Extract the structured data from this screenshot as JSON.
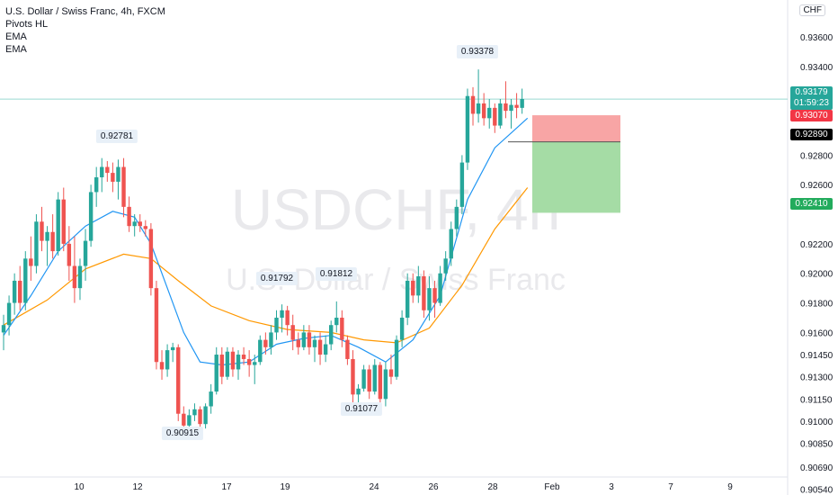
{
  "legend": {
    "title": "U.S. Dollar / Swiss Franc, 4h, FXCM",
    "indicators": [
      "Pivots HL",
      "EMA",
      "EMA"
    ]
  },
  "currency_badge": "CHF",
  "watermark": {
    "symbol": "USDCHF, 4h",
    "name": "U.S. Dollar / Swiss Franc"
  },
  "price_labels": {
    "last": {
      "price": "0.93179",
      "countdown": "01:59:23",
      "color": "#26a69a"
    },
    "stop": {
      "price": "0.93070",
      "color": "#f23645"
    },
    "entry": {
      "price": "0.92890",
      "color": "#000000"
    },
    "target": {
      "price": "0.92410",
      "color": "#22ab5c"
    }
  },
  "pivot_labels": [
    "0.92781",
    "0.91792",
    "0.91812",
    "0.93378",
    "0.90915",
    "0.91077"
  ],
  "colors": {
    "up": "#26a69a",
    "down": "#ef5350",
    "ema_fast": "#2196f3",
    "ema_slow": "#ff9800",
    "stop_zone": "#f8a5a5",
    "target_zone": "#a5dca5"
  },
  "chart_data": {
    "type": "candlestick",
    "title": "U.S. Dollar / Swiss Franc, 4h, FXCM",
    "y_tick_labels": [
      "0.93600",
      "0.93400",
      "0.92800",
      "0.92600",
      "0.92200",
      "0.92000",
      "0.91800",
      "0.91600",
      "0.91450",
      "0.91300",
      "0.91150",
      "0.91000",
      "0.90850",
      "0.90690",
      "0.90540"
    ],
    "x_tick_labels": [
      "10",
      "12",
      "17",
      "19",
      "24",
      "26",
      "28",
      "Feb",
      "3",
      "7",
      "9"
    ],
    "ylim": [
      0.905,
      0.9385
    ],
    "candles": [
      {
        "o": 0.916,
        "h": 0.9172,
        "l": 0.9148,
        "c": 0.9165
      },
      {
        "o": 0.9165,
        "h": 0.9185,
        "l": 0.9158,
        "c": 0.918
      },
      {
        "o": 0.918,
        "h": 0.92,
        "l": 0.9172,
        "c": 0.9195
      },
      {
        "o": 0.9195,
        "h": 0.9205,
        "l": 0.9175,
        "c": 0.918
      },
      {
        "o": 0.918,
        "h": 0.9215,
        "l": 0.9175,
        "c": 0.921
      },
      {
        "o": 0.921,
        "h": 0.9225,
        "l": 0.9195,
        "c": 0.9205
      },
      {
        "o": 0.9205,
        "h": 0.924,
        "l": 0.92,
        "c": 0.9235
      },
      {
        "o": 0.9235,
        "h": 0.9245,
        "l": 0.9215,
        "c": 0.9222
      },
      {
        "o": 0.9222,
        "h": 0.9232,
        "l": 0.9205,
        "c": 0.9228
      },
      {
        "o": 0.9228,
        "h": 0.924,
        "l": 0.921,
        "c": 0.9215
      },
      {
        "o": 0.9215,
        "h": 0.9255,
        "l": 0.9212,
        "c": 0.925
      },
      {
        "o": 0.925,
        "h": 0.9258,
        "l": 0.9215,
        "c": 0.922
      },
      {
        "o": 0.922,
        "h": 0.9232,
        "l": 0.9195,
        "c": 0.9205
      },
      {
        "o": 0.9205,
        "h": 0.9225,
        "l": 0.918,
        "c": 0.919
      },
      {
        "o": 0.919,
        "h": 0.921,
        "l": 0.9182,
        "c": 0.9205
      },
      {
        "o": 0.9205,
        "h": 0.923,
        "l": 0.9195,
        "c": 0.9222
      },
      {
        "o": 0.9222,
        "h": 0.926,
        "l": 0.9218,
        "c": 0.9255
      },
      {
        "o": 0.9255,
        "h": 0.9272,
        "l": 0.9245,
        "c": 0.9265
      },
      {
        "o": 0.9265,
        "h": 0.9278,
        "l": 0.9255,
        "c": 0.9272
      },
      {
        "o": 0.9272,
        "h": 0.9276,
        "l": 0.9262,
        "c": 0.9268
      },
      {
        "o": 0.9268,
        "h": 0.9275,
        "l": 0.9255,
        "c": 0.9262
      },
      {
        "o": 0.9262,
        "h": 0.9277,
        "l": 0.925,
        "c": 0.9272
      },
      {
        "o": 0.9272,
        "h": 0.9278,
        "l": 0.9238,
        "c": 0.9245
      },
      {
        "o": 0.9245,
        "h": 0.9252,
        "l": 0.9228,
        "c": 0.9232
      },
      {
        "o": 0.9232,
        "h": 0.924,
        "l": 0.9225,
        "c": 0.9235
      },
      {
        "o": 0.9235,
        "h": 0.924,
        "l": 0.9228,
        "c": 0.9232
      },
      {
        "o": 0.9232,
        "h": 0.9236,
        "l": 0.9225,
        "c": 0.923
      },
      {
        "o": 0.923,
        "h": 0.9234,
        "l": 0.9185,
        "c": 0.919
      },
      {
        "o": 0.919,
        "h": 0.9195,
        "l": 0.9135,
        "c": 0.914
      },
      {
        "o": 0.914,
        "h": 0.9148,
        "l": 0.9128,
        "c": 0.9135
      },
      {
        "o": 0.9135,
        "h": 0.9152,
        "l": 0.913,
        "c": 0.9148
      },
      {
        "o": 0.9148,
        "h": 0.9153,
        "l": 0.914,
        "c": 0.915
      },
      {
        "o": 0.915,
        "h": 0.9152,
        "l": 0.91,
        "c": 0.9105
      },
      {
        "o": 0.9105,
        "h": 0.911,
        "l": 0.9092,
        "c": 0.9097
      },
      {
        "o": 0.9097,
        "h": 0.9108,
        "l": 0.9095,
        "c": 0.9104
      },
      {
        "o": 0.9104,
        "h": 0.9112,
        "l": 0.91,
        "c": 0.9108
      },
      {
        "o": 0.9108,
        "h": 0.911,
        "l": 0.9093,
        "c": 0.9098
      },
      {
        "o": 0.9098,
        "h": 0.9112,
        "l": 0.9095,
        "c": 0.911
      },
      {
        "o": 0.911,
        "h": 0.9125,
        "l": 0.9105,
        "c": 0.912
      },
      {
        "o": 0.912,
        "h": 0.915,
        "l": 0.9118,
        "c": 0.9145
      },
      {
        "o": 0.9145,
        "h": 0.915,
        "l": 0.9125,
        "c": 0.913
      },
      {
        "o": 0.913,
        "h": 0.915,
        "l": 0.9128,
        "c": 0.9147
      },
      {
        "o": 0.9147,
        "h": 0.915,
        "l": 0.913,
        "c": 0.9135
      },
      {
        "o": 0.9135,
        "h": 0.9148,
        "l": 0.9128,
        "c": 0.9145
      },
      {
        "o": 0.9145,
        "h": 0.915,
        "l": 0.9138,
        "c": 0.9142
      },
      {
        "o": 0.9142,
        "h": 0.9148,
        "l": 0.913,
        "c": 0.9138
      },
      {
        "o": 0.9138,
        "h": 0.9145,
        "l": 0.9125,
        "c": 0.914
      },
      {
        "o": 0.914,
        "h": 0.9158,
        "l": 0.9138,
        "c": 0.9155
      },
      {
        "o": 0.9155,
        "h": 0.916,
        "l": 0.9145,
        "c": 0.915
      },
      {
        "o": 0.915,
        "h": 0.9165,
        "l": 0.9145,
        "c": 0.916
      },
      {
        "o": 0.916,
        "h": 0.9175,
        "l": 0.9155,
        "c": 0.917
      },
      {
        "o": 0.917,
        "h": 0.9179,
        "l": 0.916,
        "c": 0.9175
      },
      {
        "o": 0.9175,
        "h": 0.9178,
        "l": 0.9158,
        "c": 0.9165
      },
      {
        "o": 0.9165,
        "h": 0.9172,
        "l": 0.9148,
        "c": 0.9155
      },
      {
        "o": 0.9155,
        "h": 0.916,
        "l": 0.9145,
        "c": 0.915
      },
      {
        "o": 0.915,
        "h": 0.9165,
        "l": 0.9148,
        "c": 0.916
      },
      {
        "o": 0.916,
        "h": 0.9165,
        "l": 0.9145,
        "c": 0.915
      },
      {
        "o": 0.915,
        "h": 0.9158,
        "l": 0.914,
        "c": 0.9155
      },
      {
        "o": 0.9155,
        "h": 0.916,
        "l": 0.9138,
        "c": 0.9145
      },
      {
        "o": 0.9145,
        "h": 0.9158,
        "l": 0.914,
        "c": 0.9152
      },
      {
        "o": 0.9152,
        "h": 0.9168,
        "l": 0.9148,
        "c": 0.9165
      },
      {
        "o": 0.9165,
        "h": 0.9181,
        "l": 0.916,
        "c": 0.917
      },
      {
        "o": 0.917,
        "h": 0.9175,
        "l": 0.915,
        "c": 0.9155
      },
      {
        "o": 0.9155,
        "h": 0.9158,
        "l": 0.9138,
        "c": 0.9142
      },
      {
        "o": 0.9142,
        "h": 0.9148,
        "l": 0.9112,
        "c": 0.9118
      },
      {
        "o": 0.9118,
        "h": 0.9125,
        "l": 0.9108,
        "c": 0.9122
      },
      {
        "o": 0.9122,
        "h": 0.9138,
        "l": 0.912,
        "c": 0.9135
      },
      {
        "o": 0.9135,
        "h": 0.9138,
        "l": 0.9115,
        "c": 0.912
      },
      {
        "o": 0.912,
        "h": 0.9142,
        "l": 0.9118,
        "c": 0.9138
      },
      {
        "o": 0.9138,
        "h": 0.914,
        "l": 0.911,
        "c": 0.9115
      },
      {
        "o": 0.9115,
        "h": 0.914,
        "l": 0.911,
        "c": 0.9135
      },
      {
        "o": 0.9135,
        "h": 0.9145,
        "l": 0.9125,
        "c": 0.913
      },
      {
        "o": 0.913,
        "h": 0.9158,
        "l": 0.9128,
        "c": 0.9155
      },
      {
        "o": 0.9155,
        "h": 0.9175,
        "l": 0.915,
        "c": 0.917
      },
      {
        "o": 0.917,
        "h": 0.92,
        "l": 0.9165,
        "c": 0.9195
      },
      {
        "o": 0.9195,
        "h": 0.92,
        "l": 0.918,
        "c": 0.9185
      },
      {
        "o": 0.9185,
        "h": 0.9205,
        "l": 0.918,
        "c": 0.9198
      },
      {
        "o": 0.9198,
        "h": 0.9202,
        "l": 0.917,
        "c": 0.9175
      },
      {
        "o": 0.9175,
        "h": 0.9198,
        "l": 0.9168,
        "c": 0.919
      },
      {
        "o": 0.919,
        "h": 0.9195,
        "l": 0.917,
        "c": 0.918
      },
      {
        "o": 0.918,
        "h": 0.9205,
        "l": 0.9178,
        "c": 0.92
      },
      {
        "o": 0.92,
        "h": 0.9215,
        "l": 0.9195,
        "c": 0.921
      },
      {
        "o": 0.921,
        "h": 0.9235,
        "l": 0.9205,
        "c": 0.923
      },
      {
        "o": 0.923,
        "h": 0.925,
        "l": 0.9225,
        "c": 0.9245
      },
      {
        "o": 0.9245,
        "h": 0.928,
        "l": 0.924,
        "c": 0.9275
      },
      {
        "o": 0.9275,
        "h": 0.9325,
        "l": 0.927,
        "c": 0.932
      },
      {
        "o": 0.932,
        "h": 0.9326,
        "l": 0.93,
        "c": 0.9308
      },
      {
        "o": 0.9308,
        "h": 0.9338,
        "l": 0.9302,
        "c": 0.9315
      },
      {
        "o": 0.9315,
        "h": 0.9322,
        "l": 0.93,
        "c": 0.9305
      },
      {
        "o": 0.9305,
        "h": 0.9318,
        "l": 0.9298,
        "c": 0.9312
      },
      {
        "o": 0.9312,
        "h": 0.9315,
        "l": 0.9295,
        "c": 0.93
      },
      {
        "o": 0.93,
        "h": 0.9318,
        "l": 0.9298,
        "c": 0.9315
      },
      {
        "o": 0.9315,
        "h": 0.933,
        "l": 0.9305,
        "c": 0.931
      },
      {
        "o": 0.931,
        "h": 0.9318,
        "l": 0.9298,
        "c": 0.9314
      },
      {
        "o": 0.9314,
        "h": 0.9322,
        "l": 0.9305,
        "c": 0.9312
      },
      {
        "o": 0.9312,
        "h": 0.9325,
        "l": 0.9308,
        "c": 0.9318
      }
    ],
    "ema_fast": [
      [
        0,
        0.9158
      ],
      [
        5,
        0.9185
      ],
      [
        10,
        0.9215
      ],
      [
        15,
        0.9232
      ],
      [
        20,
        0.9242
      ],
      [
        24,
        0.9238
      ],
      [
        27,
        0.922
      ],
      [
        30,
        0.919
      ],
      [
        33,
        0.916
      ],
      [
        36,
        0.914
      ],
      [
        40,
        0.9138
      ],
      [
        45,
        0.914
      ],
      [
        50,
        0.9152
      ],
      [
        55,
        0.9156
      ],
      [
        60,
        0.9158
      ],
      [
        65,
        0.915
      ],
      [
        70,
        0.914
      ],
      [
        75,
        0.9155
      ],
      [
        80,
        0.9185
      ],
      [
        85,
        0.925
      ],
      [
        90,
        0.9285
      ],
      [
        96,
        0.9305
      ]
    ],
    "ema_slow": [
      [
        0,
        0.9165
      ],
      [
        8,
        0.9182
      ],
      [
        15,
        0.9203
      ],
      [
        22,
        0.9213
      ],
      [
        27,
        0.921
      ],
      [
        32,
        0.9195
      ],
      [
        38,
        0.9178
      ],
      [
        45,
        0.9168
      ],
      [
        52,
        0.9162
      ],
      [
        60,
        0.916
      ],
      [
        66,
        0.9155
      ],
      [
        72,
        0.9153
      ],
      [
        78,
        0.9163
      ],
      [
        84,
        0.9192
      ],
      [
        90,
        0.923
      ],
      [
        96,
        0.9258
      ]
    ],
    "position": {
      "type": "short",
      "entry": 0.9289,
      "stop": 0.9307,
      "target": 0.9241
    },
    "pivots": [
      {
        "label": "0.92781",
        "index": 21,
        "price": 0.92781,
        "kind": "high"
      },
      {
        "label": "0.91792",
        "index": 51,
        "price": 0.91792,
        "kind": "high"
      },
      {
        "label": "0.91812",
        "index": 61,
        "price": 0.91812,
        "kind": "high"
      },
      {
        "label": "0.93378",
        "index": 87,
        "price": 0.93378,
        "kind": "high"
      },
      {
        "label": "0.90915",
        "index": 33,
        "price": 0.90915,
        "kind": "low"
      },
      {
        "label": "0.91077",
        "index": 69,
        "price": 0.91077,
        "kind": "low"
      }
    ],
    "last_price": 0.93179
  }
}
